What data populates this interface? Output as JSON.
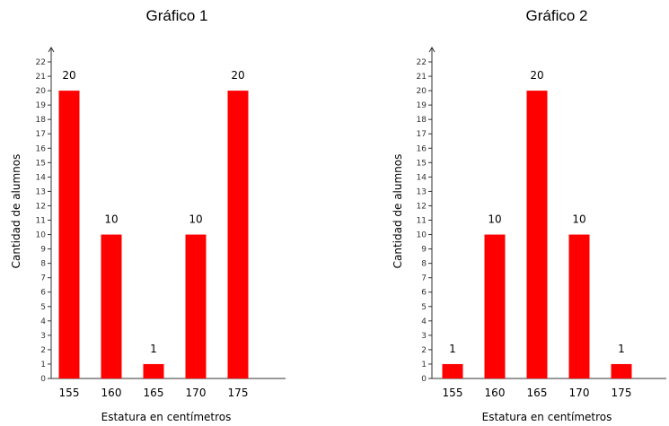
{
  "chart_data": [
    {
      "type": "bar",
      "title": "Gráfico 1",
      "xlabel": "Estatura en centímetros",
      "ylabel": "Cantidad de alumnos",
      "categories": [
        "155",
        "160",
        "165",
        "170",
        "175"
      ],
      "values": [
        20,
        10,
        1,
        10,
        20
      ],
      "data_labels": [
        "20",
        "10",
        "1",
        "10",
        "20"
      ],
      "ylim": [
        0,
        22
      ],
      "yticks": [
        0,
        1,
        2,
        3,
        4,
        5,
        6,
        7,
        8,
        9,
        10,
        11,
        12,
        13,
        14,
        15,
        16,
        17,
        18,
        19,
        20,
        21,
        22
      ],
      "bar_color": "#ff0000",
      "grid": false
    },
    {
      "type": "bar",
      "title": "Gráfico 2",
      "xlabel": "Estatura en centímetros",
      "ylabel": "Cantidad de alumnos",
      "categories": [
        "155",
        "160",
        "165",
        "170",
        "175"
      ],
      "values": [
        1,
        10,
        20,
        10,
        1
      ],
      "data_labels": [
        "1",
        "10",
        "20",
        "10",
        "1"
      ],
      "ylim": [
        0,
        22
      ],
      "yticks": [
        0,
        1,
        2,
        3,
        4,
        5,
        6,
        7,
        8,
        9,
        10,
        11,
        12,
        13,
        14,
        15,
        16,
        17,
        18,
        19,
        20,
        21,
        22
      ],
      "bar_color": "#ff0000",
      "grid": false
    }
  ]
}
